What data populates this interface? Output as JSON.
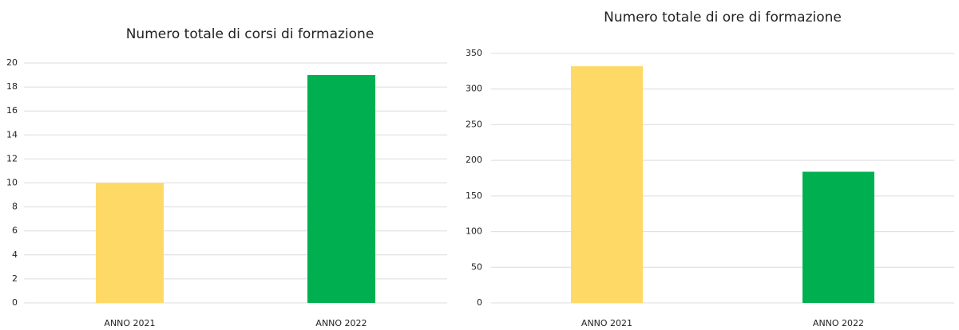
{
  "chart_data": [
    {
      "type": "bar",
      "title": "Numero totale di corsi di formazione",
      "categories": [
        "ANNO 2021",
        "ANNO 2022"
      ],
      "values": [
        10,
        19
      ],
      "colors": [
        "#FFD966",
        "#00B050"
      ],
      "ylim": [
        0,
        20
      ],
      "yticks": [
        0,
        2,
        4,
        6,
        8,
        10,
        12,
        14,
        16,
        18,
        20
      ],
      "grid": true
    },
    {
      "type": "bar",
      "title": "Numero totale di ore di formazione",
      "categories": [
        "ANNO 2021",
        "ANNO 2022"
      ],
      "values": [
        332,
        184
      ],
      "colors": [
        "#FFD966",
        "#00B050"
      ],
      "ylim": [
        0,
        350
      ],
      "yticks": [
        0,
        50,
        100,
        150,
        200,
        250,
        300,
        350
      ],
      "grid": true
    }
  ]
}
